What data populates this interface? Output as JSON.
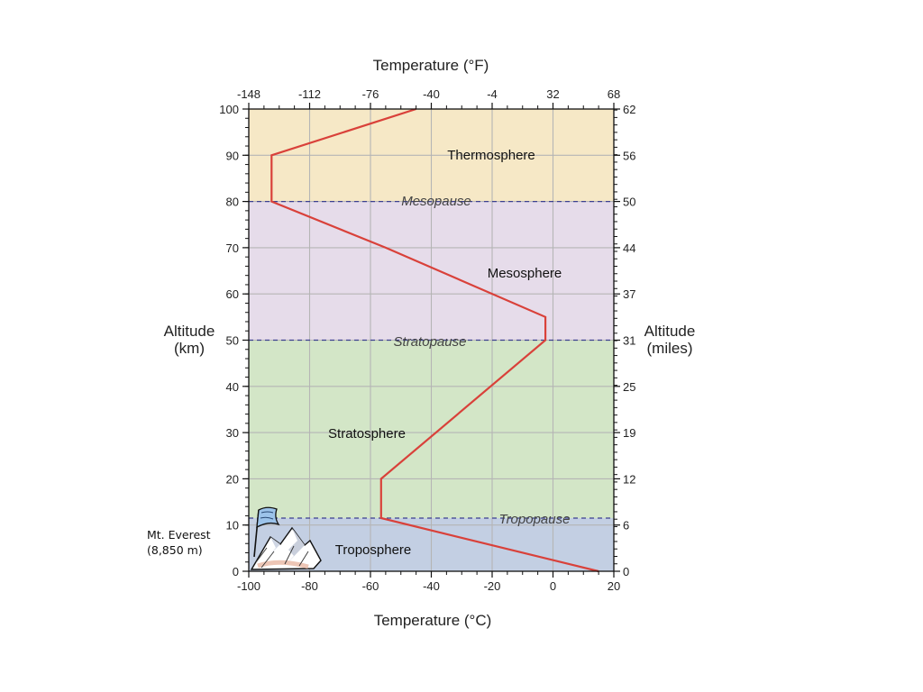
{
  "chart_data": {
    "type": "line",
    "title": "",
    "top_axis": {
      "label": "Temperature (°F)",
      "tick_labels": [
        "-148",
        "-112",
        "-76",
        "-40",
        "-4",
        "32",
        "68"
      ]
    },
    "bottom_axis": {
      "label": "Temperature (°C)",
      "range": [
        -100,
        20
      ],
      "ticks": [
        -100,
        -80,
        -60,
        -40,
        -20,
        0,
        20
      ]
    },
    "left_axis": {
      "label_line1": "Altitude",
      "label_line2": "(km)",
      "range": [
        0,
        100
      ],
      "ticks": [
        0,
        10,
        20,
        30,
        40,
        50,
        60,
        70,
        80,
        90,
        100
      ]
    },
    "right_axis": {
      "label_line1": "Altitude",
      "label_line2": "(miles)",
      "tick_labels": [
        "0",
        "6",
        "12",
        "19",
        "25",
        "31",
        "37",
        "44",
        "50",
        "56",
        "62"
      ]
    },
    "grid": true,
    "layers": [
      {
        "name": "Troposphere",
        "range_km": [
          0,
          11.5
        ],
        "color": "#c3cfe3"
      },
      {
        "name": "Stratosphere",
        "range_km": [
          11.5,
          50
        ],
        "color": "#d3e6c7"
      },
      {
        "name": "Mesosphere",
        "range_km": [
          50,
          80
        ],
        "color": "#e6dcea"
      },
      {
        "name": "Thermosphere",
        "range_km": [
          80,
          100
        ],
        "color": "#f6e8c6"
      }
    ],
    "boundaries": [
      {
        "name": "Tropopause",
        "altitude_km": 11.5
      },
      {
        "name": "Stratopause",
        "altitude_km": 50
      },
      {
        "name": "Mesopause",
        "altitude_km": 80
      }
    ],
    "temperature_profile": {
      "color": "#d9413a",
      "points": [
        {
          "t_c": 15,
          "alt_km": 0
        },
        {
          "t_c": -56.5,
          "alt_km": 11.5
        },
        {
          "t_c": -56.5,
          "alt_km": 20
        },
        {
          "t_c": -2.5,
          "alt_km": 50
        },
        {
          "t_c": -2.5,
          "alt_km": 55
        },
        {
          "t_c": -55,
          "alt_km": 70
        },
        {
          "t_c": -92.5,
          "alt_km": 80
        },
        {
          "t_c": -92.5,
          "alt_km": 90
        },
        {
          "t_c": -45,
          "alt_km": 100
        }
      ]
    },
    "annotation": {
      "line1": "Mt. Everest",
      "line2": "(8,850 m)"
    }
  }
}
